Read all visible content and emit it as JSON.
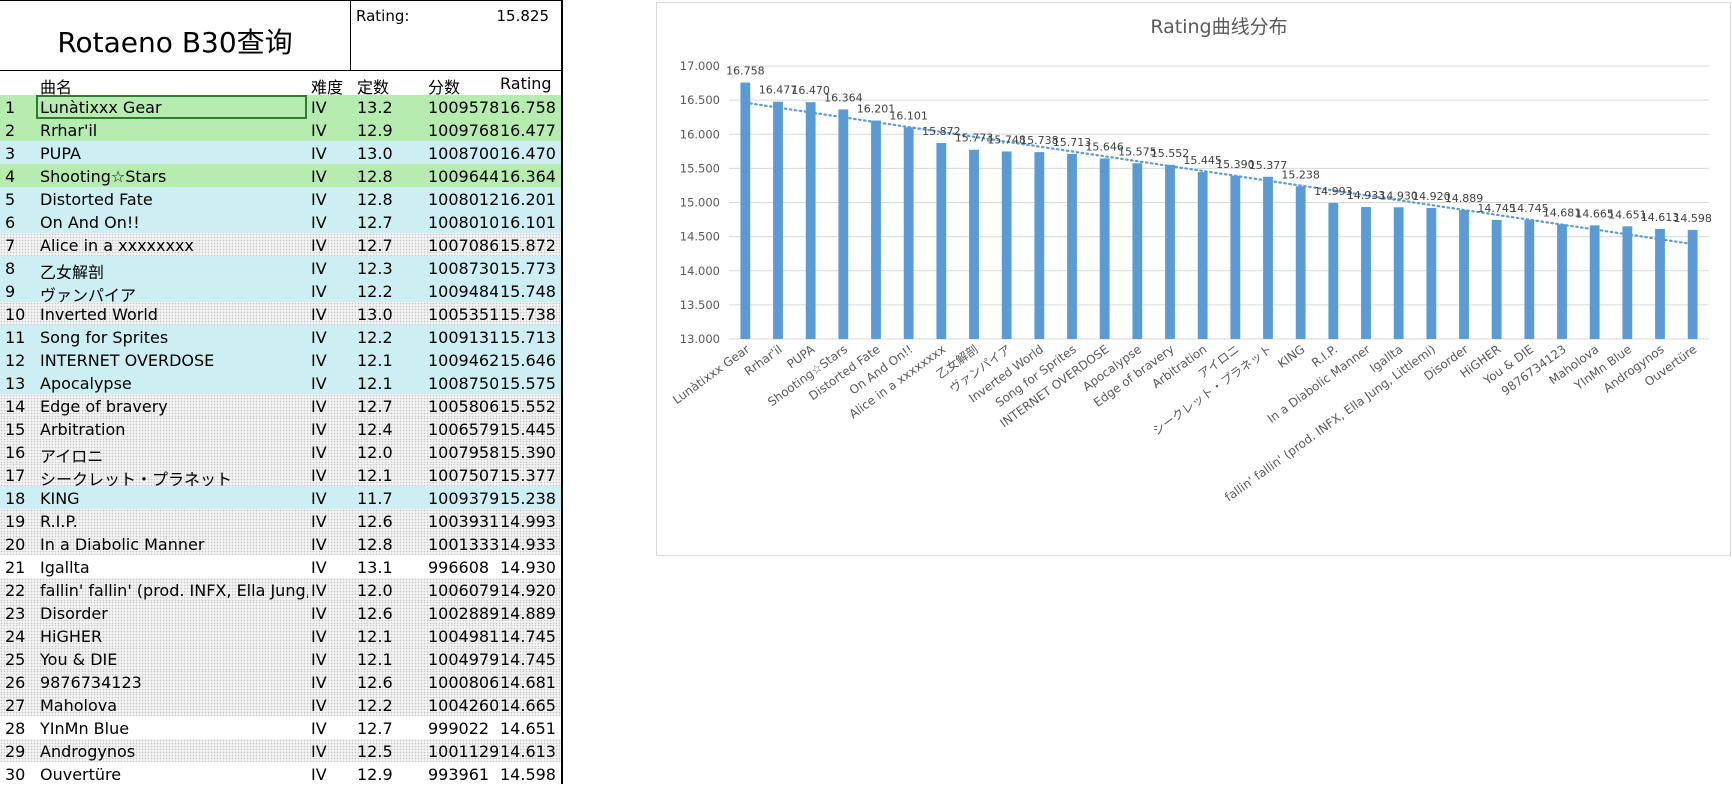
{
  "sheet": {
    "title": "Rotaeno B30查询",
    "rating_label": "Rating:",
    "rating_value": "15.825",
    "headers": {
      "name": "曲名",
      "diff": "难度",
      "const": "定数",
      "score": "分数",
      "rating": "Rating"
    },
    "rows": [
      {
        "no": "1",
        "name": "Lunàtixxx Gear",
        "diff": "IV",
        "const": "13.2",
        "score": "1009578",
        "rating": "16.758",
        "bg": "green"
      },
      {
        "no": "2",
        "name": "Rrhar'il",
        "diff": "IV",
        "const": "12.9",
        "score": "1009768",
        "rating": "16.477",
        "bg": "green"
      },
      {
        "no": "3",
        "name": "PUPA",
        "diff": "IV",
        "const": "13.0",
        "score": "1008700",
        "rating": "16.470",
        "bg": "blue"
      },
      {
        "no": "4",
        "name": "Shooting☆Stars",
        "diff": "IV",
        "const": "12.8",
        "score": "1009644",
        "rating": "16.364",
        "bg": "green"
      },
      {
        "no": "5",
        "name": "Distorted Fate",
        "diff": "IV",
        "const": "12.8",
        "score": "1008012",
        "rating": "16.201",
        "bg": "blue"
      },
      {
        "no": "6",
        "name": "On And On!!",
        "diff": "IV",
        "const": "12.7",
        "score": "1008010",
        "rating": "16.101",
        "bg": "blue"
      },
      {
        "no": "7",
        "name": "Alice in a xxxxxxxx",
        "diff": "IV",
        "const": "12.7",
        "score": "1007086",
        "rating": "15.872",
        "bg": "dot"
      },
      {
        "no": "8",
        "name": "乙女解剖",
        "diff": "IV",
        "const": "12.3",
        "score": "1008730",
        "rating": "15.773",
        "bg": "blue"
      },
      {
        "no": "9",
        "name": "ヴァンパイア",
        "diff": "IV",
        "const": "12.2",
        "score": "1009484",
        "rating": "15.748",
        "bg": "blue"
      },
      {
        "no": "10",
        "name": "Inverted World",
        "diff": "IV",
        "const": "13.0",
        "score": "1005351",
        "rating": "15.738",
        "bg": "dot"
      },
      {
        "no": "11",
        "name": "Song for Sprites",
        "diff": "IV",
        "const": "12.2",
        "score": "1009131",
        "rating": "15.713",
        "bg": "blue"
      },
      {
        "no": "12",
        "name": "INTERNET OVERDOSE",
        "diff": "IV",
        "const": "12.1",
        "score": "1009462",
        "rating": "15.646",
        "bg": "blue"
      },
      {
        "no": "13",
        "name": "Apocalypse",
        "diff": "IV",
        "const": "12.1",
        "score": "1008750",
        "rating": "15.575",
        "bg": "blue"
      },
      {
        "no": "14",
        "name": "Edge of bravery",
        "diff": "IV",
        "const": "12.7",
        "score": "1005806",
        "rating": "15.552",
        "bg": "dot"
      },
      {
        "no": "15",
        "name": "Arbitration",
        "diff": "IV",
        "const": "12.4",
        "score": "1006579",
        "rating": "15.445",
        "bg": "dot"
      },
      {
        "no": "16",
        "name": "アイロニ",
        "diff": "IV",
        "const": "12.0",
        "score": "1007958",
        "rating": "15.390",
        "bg": "dot"
      },
      {
        "no": "17",
        "name": "シークレット・プラネット",
        "diff": "IV",
        "const": "12.1",
        "score": "1007507",
        "rating": "15.377",
        "bg": "dot"
      },
      {
        "no": "18",
        "name": "KING",
        "diff": "IV",
        "const": "11.7",
        "score": "1009379",
        "rating": "15.238",
        "bg": "blue"
      },
      {
        "no": "19",
        "name": "R.I.P.",
        "diff": "IV",
        "const": "12.6",
        "score": "1003931",
        "rating": "14.993",
        "bg": "dot"
      },
      {
        "no": "20",
        "name": "In a Diabolic Manner",
        "diff": "IV",
        "const": "12.8",
        "score": "1001333",
        "rating": "14.933",
        "bg": "dot"
      },
      {
        "no": "21",
        "name": "Igallta",
        "diff": "IV",
        "const": "13.1",
        "score": "996608",
        "rating": "14.930",
        "bg": "white"
      },
      {
        "no": "22",
        "name": "fallin' fallin' (prod. INFX, Ella Jung, Littlemi)",
        "diff": "IV",
        "const": "12.0",
        "score": "1006079",
        "rating": "14.920",
        "bg": "dot"
      },
      {
        "no": "23",
        "name": "Disorder",
        "diff": "IV",
        "const": "12.6",
        "score": "1002889",
        "rating": "14.889",
        "bg": "dot"
      },
      {
        "no": "24",
        "name": "HiGHER",
        "diff": "IV",
        "const": "12.1",
        "score": "1004981",
        "rating": "14.745",
        "bg": "dot"
      },
      {
        "no": "25",
        "name": "You & DIE",
        "diff": "IV",
        "const": "12.1",
        "score": "1004979",
        "rating": "14.745",
        "bg": "dot"
      },
      {
        "no": "26",
        "name": "9876734123",
        "diff": "IV",
        "const": "12.6",
        "score": "1000806",
        "rating": "14.681",
        "bg": "dot"
      },
      {
        "no": "27",
        "name": "Maholova",
        "diff": "IV",
        "const": "12.2",
        "score": "1004260",
        "rating": "14.665",
        "bg": "dot"
      },
      {
        "no": "28",
        "name": "YInMn Blue",
        "diff": "IV",
        "const": "12.7",
        "score": "999022",
        "rating": "14.651",
        "bg": "white"
      },
      {
        "no": "29",
        "name": "Androgynos",
        "diff": "IV",
        "const": "12.5",
        "score": "1001129",
        "rating": "14.613",
        "bg": "dot"
      },
      {
        "no": "30",
        "name": "Ouvertüre",
        "diff": "IV",
        "const": "12.9",
        "score": "993961",
        "rating": "14.598",
        "bg": "white"
      }
    ]
  },
  "colors": {
    "bar": "#5b9bd5",
    "trend": "#5b9bd5",
    "green": "#b6ecb0",
    "blue": "#cdeef3"
  },
  "chart_data": {
    "type": "bar",
    "title": "Rating曲线分布",
    "xlabel": "",
    "ylabel": "",
    "ylim": [
      13.0,
      17.0
    ],
    "yticks": [
      "13.000",
      "13.500",
      "14.000",
      "14.500",
      "15.000",
      "15.500",
      "16.000",
      "16.500",
      "17.000"
    ],
    "grid": true,
    "trendline": "linear (dotted)",
    "categories": [
      "Lunàtixxx Gear",
      "Rrhar'il",
      "PUPA",
      "Shooting☆Stars",
      "Distorted Fate",
      "On And On!!",
      "Alice in a xxxxxxxx",
      "乙女解剖",
      "ヴァンパイア",
      "Inverted World",
      "Song for Sprites",
      "INTERNET OVERDOSE",
      "Apocalypse",
      "Edge of bravery",
      "Arbitration",
      "アイロニ",
      "シークレット・プラネット",
      "KING",
      "R.I.P.",
      "In a Diabolic Manner",
      "Igallta",
      "fallin' fallin' (prod. INFX, Ella Jung, Littlemi)",
      "Disorder",
      "HiGHER",
      "You & DIE",
      "9876734123",
      "Maholova",
      "YInMn Blue",
      "Androgynos",
      "Ouvertüre"
    ],
    "values": [
      16.758,
      16.477,
      16.47,
      16.364,
      16.201,
      16.101,
      15.872,
      15.773,
      15.748,
      15.738,
      15.713,
      15.646,
      15.575,
      15.552,
      15.445,
      15.39,
      15.377,
      15.238,
      14.993,
      14.933,
      14.93,
      14.92,
      14.889,
      14.745,
      14.745,
      14.681,
      14.665,
      14.651,
      14.613,
      14.598
    ],
    "data_labels": [
      "16.758",
      "16.477",
      "16.470",
      "16.364",
      "16.201",
      "16.101",
      "15.872",
      "15.773",
      "15.748",
      "15.738",
      "15.713",
      "15.646",
      "15.575",
      "15.552",
      "15.445",
      "15.390",
      "15.377",
      "15.238",
      "14.993",
      "14.933",
      "14.930",
      "14.920",
      "14.889",
      "14.745",
      "14.745",
      "14.681",
      "14.665",
      "14.651",
      "14.613",
      "14.598"
    ]
  }
}
